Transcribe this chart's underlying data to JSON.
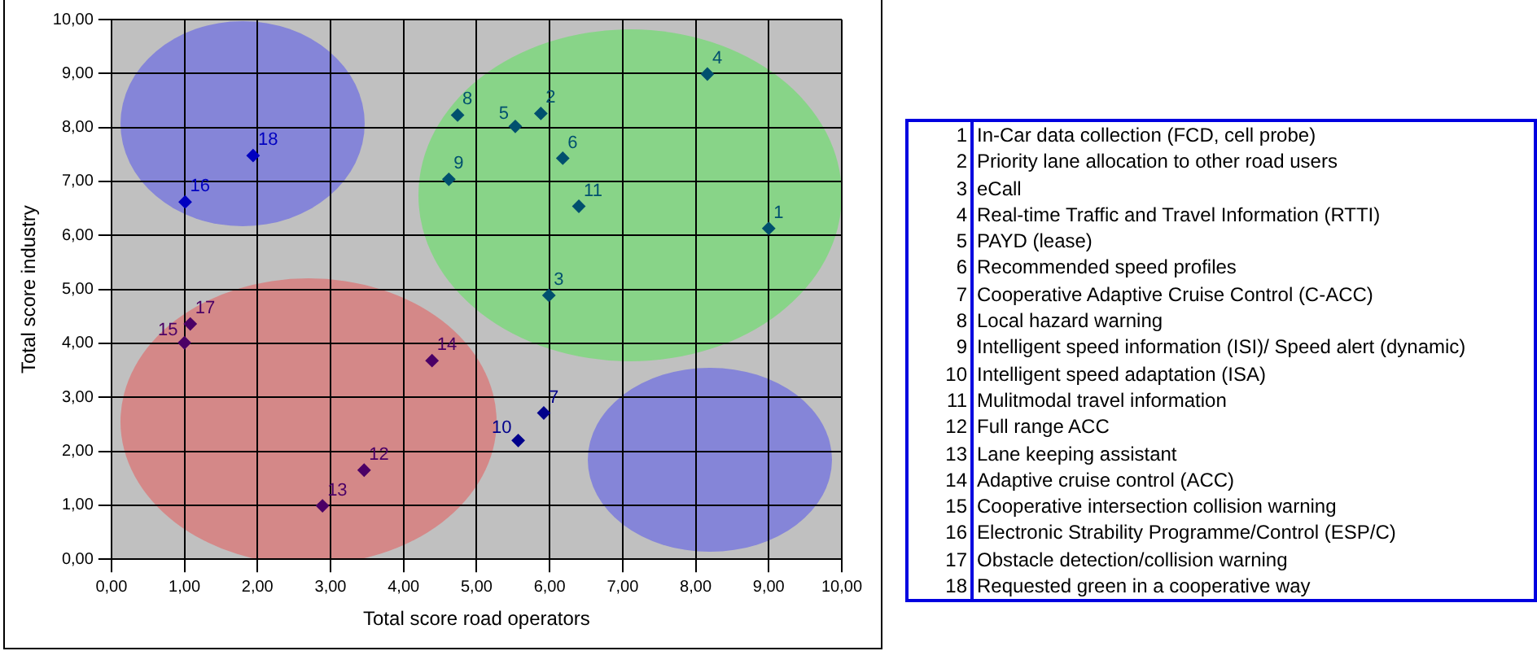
{
  "chart_data": {
    "type": "scatter",
    "xlabel": "Total score road operators",
    "ylabel": "Total score industry",
    "x": [
      9.0,
      5.88,
      5.99,
      8.16,
      5.53,
      6.18,
      5.92,
      4.74,
      4.62,
      5.57,
      6.4,
      3.46,
      2.89,
      4.39,
      1.0,
      1.01,
      1.08,
      1.94
    ],
    "values": [
      6.13,
      8.26,
      4.89,
      8.99,
      8.02,
      7.43,
      2.71,
      8.23,
      7.04,
      2.2,
      6.54,
      1.65,
      0.99,
      3.68,
      4.01,
      6.62,
      4.36,
      7.48
    ],
    "colors": [
      "#00506e",
      "#00506e",
      "#00506e",
      "#00506e",
      "#00506e",
      "#00506e",
      "#00008b",
      "#00506e",
      "#00506e",
      "#00008b",
      "#00506e",
      "#4b0066",
      "#4b0066",
      "#4b0066",
      "#4b0066",
      "#0000c0",
      "#4b0066",
      "#0000c0"
    ],
    "xlim": [
      0,
      10
    ],
    "ylim": [
      0,
      10
    ],
    "xticks": [
      {
        "value": 0,
        "label": "0,00"
      },
      {
        "value": 1,
        "label": "1,00"
      },
      {
        "value": 2,
        "label": "2,00"
      },
      {
        "value": 3,
        "label": "3,00"
      },
      {
        "value": 4,
        "label": "4,00"
      },
      {
        "value": 5,
        "label": "5,00"
      },
      {
        "value": 6,
        "label": "6,00"
      },
      {
        "value": 7,
        "label": "7,00"
      },
      {
        "value": 8,
        "label": "8,00"
      },
      {
        "value": 9,
        "label": "9,00"
      },
      {
        "value": 10,
        "label": "10,00"
      }
    ],
    "yticks": [
      {
        "value": 0,
        "label": "0,00"
      },
      {
        "value": 1,
        "label": "1,00"
      },
      {
        "value": 2,
        "label": "2,00"
      },
      {
        "value": 3,
        "label": "3,00"
      },
      {
        "value": 4,
        "label": "4,00"
      },
      {
        "value": 5,
        "label": "5,00"
      },
      {
        "value": 6,
        "label": "6,00"
      },
      {
        "value": 7,
        "label": "7,00"
      },
      {
        "value": 8,
        "label": "8,00"
      },
      {
        "value": 9,
        "label": "9,00"
      },
      {
        "value": 10,
        "label": "10,00"
      }
    ],
    "grid": true,
    "legend": false,
    "marker": "diamond",
    "annotations": [
      {
        "text": "1",
        "x": 9.0,
        "y": 6.13
      },
      {
        "text": "2",
        "x": 5.88,
        "y": 8.26
      },
      {
        "text": "3",
        "x": 5.99,
        "y": 4.89
      },
      {
        "text": "4",
        "x": 8.16,
        "y": 8.99
      },
      {
        "text": "5",
        "x": 5.53,
        "y": 8.02
      },
      {
        "text": "6",
        "x": 6.18,
        "y": 7.43
      },
      {
        "text": "7",
        "x": 5.92,
        "y": 2.71
      },
      {
        "text": "8",
        "x": 4.74,
        "y": 8.23
      },
      {
        "text": "9",
        "x": 4.62,
        "y": 7.04
      },
      {
        "text": "10",
        "x": 5.57,
        "y": 2.2
      },
      {
        "text": "11",
        "x": 6.4,
        "y": 6.54
      },
      {
        "text": "12",
        "x": 3.46,
        "y": 1.65
      },
      {
        "text": "13",
        "x": 2.89,
        "y": 0.99
      },
      {
        "text": "14",
        "x": 4.39,
        "y": 3.68
      },
      {
        "text": "15",
        "x": 1.0,
        "y": 4.01
      },
      {
        "text": "16",
        "x": 1.01,
        "y": 6.62
      },
      {
        "text": "17",
        "x": 1.08,
        "y": 4.36
      },
      {
        "text": "18",
        "x": 1.94,
        "y": 7.48
      },
      "1 In-Car data collection (FCD, cell probe)",
      "2 Priority lane allocation to other road users",
      "3 eCall",
      "4 Real-time Traffic and Travel Information (RTTI)",
      "5 PAYD (lease)",
      "6 Recommended speed profiles",
      "7 Cooperative Adaptive Cruise Control (C-ACC)",
      "8 Local hazard warning",
      "9 Intelligent speed information (ISI)/ Speed alert (dynamic)",
      "10 Intelligent speed adaptation (ISA)",
      "11 Mulitmodal travel information",
      "12 Full range ACC",
      "13 Lane keeping assistant",
      "14 Adaptive cruise control (ACC)",
      "15 Cooperative intersection collision warning",
      "16 Electronic Strability Programme/Control (ESP/C)",
      "17 Obstacle detection/collision warning",
      "18 Requested green in a cooperative way"
    ]
  }
}
